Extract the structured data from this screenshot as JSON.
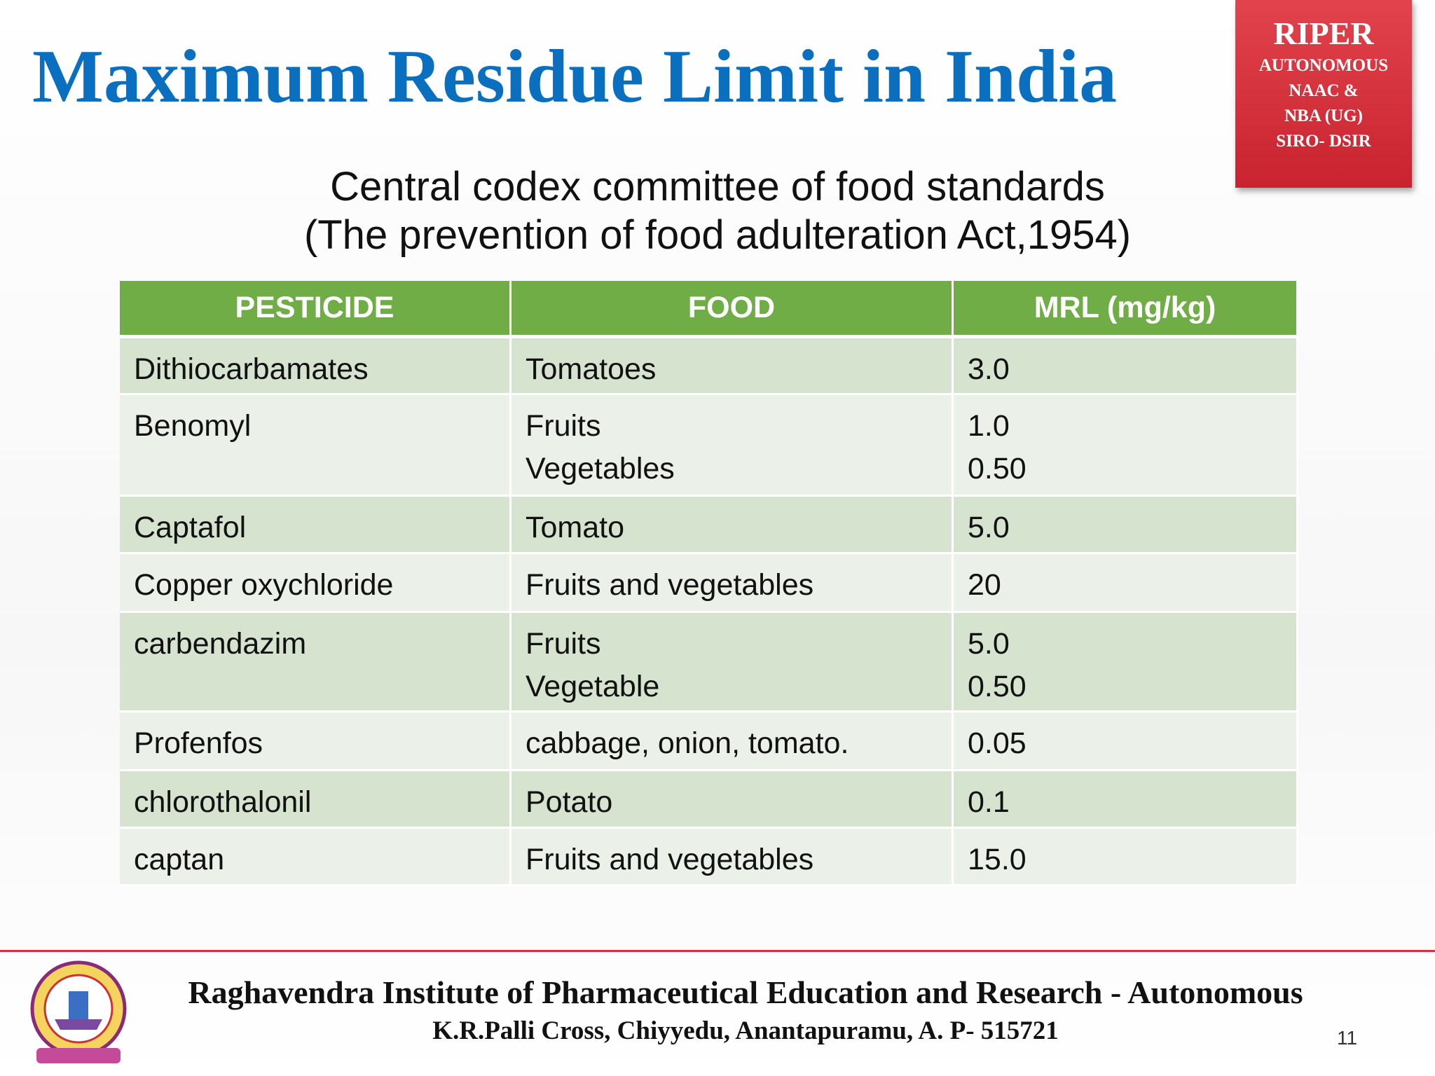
{
  "header": {
    "title": "Maximum Residue Limit in India",
    "badge": [
      "RIPER",
      "AUTONOMOUS",
      "NAAC &",
      "NBA (UG)",
      "SIRO- DSIR"
    ]
  },
  "subtitle": [
    "Central codex committee of food standards",
    "(The prevention of food adulteration Act,1954)"
  ],
  "table": {
    "columns": [
      "PESTICIDE",
      "FOOD",
      "MRL (mg/kg)"
    ],
    "rows": [
      [
        [
          "Dithiocarbamates"
        ],
        [
          "Tomatoes"
        ],
        [
          "3.0"
        ]
      ],
      [
        [
          "Benomyl"
        ],
        [
          "Fruits",
          "Vegetables"
        ],
        [
          "1.0",
          "0.50"
        ]
      ],
      [
        [
          "Captafol"
        ],
        [
          "Tomato"
        ],
        [
          "5.0"
        ]
      ],
      [
        [
          "Copper oxychloride"
        ],
        [
          "Fruits and vegetables"
        ],
        [
          "20"
        ]
      ],
      [
        [
          "carbendazim"
        ],
        [
          "Fruits",
          "Vegetable"
        ],
        [
          "5.0",
          "0.50"
        ]
      ],
      [
        [
          "Profenfos"
        ],
        [
          "cabbage, onion, tomato."
        ],
        [
          "0.05"
        ]
      ],
      [
        [
          "chlorothalonil"
        ],
        [
          "Potato"
        ],
        [
          "0.1"
        ]
      ],
      [
        [
          "captan"
        ],
        [
          "Fruits and vegetables"
        ],
        [
          "15.0"
        ]
      ]
    ]
  },
  "footer": {
    "institute": "Raghavendra Institute of Pharmaceutical Education and Research - Autonomous",
    "address": "K.R.Palli Cross, Chiyyedu, Anantapuramu, A. P- 515721",
    "page": "11"
  }
}
